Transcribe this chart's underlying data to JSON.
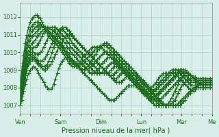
{
  "bg_color": "#d8eee8",
  "grid_color": "#b0d0c8",
  "line_color": "#1a6b1a",
  "marker": "+",
  "marker_size": 4,
  "linewidth": 1.0,
  "ylim": [
    1006.5,
    1012.8
  ],
  "yticks": [
    1007,
    1008,
    1009,
    1010,
    1011,
    1012
  ],
  "xlabel": "Pression niveau de la mer( hPa )",
  "day_labels": [
    "Ven",
    "Sam",
    "Dim",
    "Lun",
    "Mar",
    "Me"
  ],
  "day_positions": [
    0,
    24,
    48,
    72,
    96,
    114
  ],
  "n_points": 115,
  "series": [
    [
      1007.0,
      1007.3,
      1007.8,
      1008.2,
      1008.5,
      1008.8,
      1009.0,
      1009.1,
      1009.2,
      1009.1,
      1009.0,
      1008.8,
      1008.6,
      1008.5,
      1008.3,
      1008.1,
      1008.0,
      1007.9,
      1007.9,
      1008.0,
      1008.2,
      1008.5,
      1008.8,
      1009.1,
      1009.3,
      1009.5,
      1009.6,
      1009.7,
      1009.7,
      1009.7,
      1009.6,
      1009.5,
      1009.4,
      1009.3,
      1009.2,
      1009.1,
      1009.0,
      1008.9,
      1008.8,
      1008.7,
      1008.6,
      1008.5,
      1008.4,
      1008.3,
      1008.2,
      1008.1,
      1008.0,
      1007.9,
      1007.8,
      1007.7,
      1007.6,
      1007.5,
      1007.4,
      1007.3,
      1007.3,
      1007.3,
      1007.3,
      1007.4,
      1007.5,
      1007.6,
      1007.7,
      1007.8,
      1007.9,
      1008.0,
      1008.1,
      1008.1,
      1008.1,
      1008.1,
      1008.1,
      1008.1,
      1008.0,
      1007.9,
      1007.8,
      1007.7,
      1007.6,
      1007.5,
      1007.4,
      1007.3,
      1007.2,
      1007.1,
      1007.0,
      1007.0,
      1007.0,
      1007.0,
      1007.0,
      1007.0,
      1007.0,
      1007.0,
      1007.0,
      1007.0,
      1007.0,
      1007.0,
      1007.0,
      1007.0,
      1007.0,
      1007.0,
      1007.1,
      1007.2,
      1007.3,
      1007.5,
      1007.6,
      1007.7,
      1007.8,
      1007.9,
      1008.0,
      1008.1,
      1008.2,
      1008.2,
      1008.2,
      1008.2,
      1008.2,
      1008.2,
      1008.2,
      1008.2,
      1008.2
    ],
    [
      1007.0,
      1007.5,
      1008.0,
      1008.5,
      1009.0,
      1009.3,
      1009.5,
      1009.6,
      1009.6,
      1009.5,
      1009.4,
      1009.3,
      1009.2,
      1009.1,
      1009.0,
      1009.0,
      1009.1,
      1009.2,
      1009.3,
      1009.5,
      1009.7,
      1009.9,
      1010.1,
      1010.3,
      1010.5,
      1010.6,
      1010.8,
      1010.9,
      1011.0,
      1011.0,
      1011.0,
      1010.9,
      1010.8,
      1010.7,
      1010.6,
      1010.5,
      1010.4,
      1010.3,
      1010.2,
      1010.1,
      1010.0,
      1009.9,
      1009.8,
      1009.7,
      1009.6,
      1009.5,
      1009.4,
      1009.3,
      1009.2,
      1009.1,
      1009.0,
      1008.9,
      1008.8,
      1008.7,
      1008.6,
      1008.5,
      1008.4,
      1008.3,
      1008.3,
      1008.3,
      1008.3,
      1008.4,
      1008.5,
      1008.6,
      1008.7,
      1008.7,
      1008.7,
      1008.7,
      1008.7,
      1008.7,
      1008.6,
      1008.5,
      1008.4,
      1008.3,
      1008.2,
      1008.1,
      1008.0,
      1007.9,
      1007.8,
      1007.7,
      1007.6,
      1007.5,
      1007.4,
      1007.3,
      1007.2,
      1007.1,
      1007.0,
      1007.0,
      1007.0,
      1007.0,
      1007.0,
      1007.0,
      1007.0,
      1007.0,
      1007.1,
      1007.2,
      1007.3,
      1007.4,
      1007.5,
      1007.6,
      1007.7,
      1007.8,
      1007.9,
      1008.0,
      1008.0,
      1008.0,
      1008.0,
      1008.0,
      1008.0,
      1008.0,
      1008.0,
      1008.0,
      1008.0,
      1008.0,
      1008.0
    ],
    [
      1007.0,
      1007.6,
      1008.2,
      1008.7,
      1009.1,
      1009.4,
      1009.6,
      1009.7,
      1009.7,
      1009.6,
      1009.5,
      1009.4,
      1009.3,
      1009.2,
      1009.2,
      1009.2,
      1009.3,
      1009.5,
      1009.7,
      1010.0,
      1010.3,
      1010.6,
      1010.8,
      1011.0,
      1011.2,
      1011.3,
      1011.4,
      1011.4,
      1011.3,
      1011.2,
      1011.1,
      1011.0,
      1010.8,
      1010.7,
      1010.6,
      1010.5,
      1010.4,
      1010.3,
      1010.2,
      1010.1,
      1010.0,
      1009.9,
      1009.8,
      1009.7,
      1009.6,
      1009.5,
      1009.4,
      1009.3,
      1009.2,
      1009.1,
      1009.0,
      1008.9,
      1008.8,
      1008.7,
      1008.6,
      1008.5,
      1008.5,
      1008.5,
      1008.6,
      1008.7,
      1008.8,
      1008.9,
      1009.0,
      1009.0,
      1009.0,
      1009.0,
      1008.9,
      1008.8,
      1008.7,
      1008.6,
      1008.5,
      1008.4,
      1008.3,
      1008.2,
      1008.1,
      1008.0,
      1007.9,
      1007.8,
      1007.7,
      1007.6,
      1007.5,
      1007.4,
      1007.3,
      1007.2,
      1007.1,
      1007.0,
      1007.0,
      1007.0,
      1007.0,
      1007.0,
      1007.1,
      1007.2,
      1007.3,
      1007.5,
      1007.7,
      1007.9,
      1008.1,
      1008.2,
      1008.3,
      1008.4,
      1008.5,
      1008.5,
      1008.5,
      1008.5,
      1008.5,
      1008.5,
      1008.5,
      1008.5,
      1008.5,
      1008.5,
      1008.5,
      1008.5,
      1008.5,
      1008.5,
      1008.5
    ],
    [
      1007.0,
      1007.7,
      1008.3,
      1008.8,
      1009.2,
      1009.5,
      1009.7,
      1009.8,
      1009.8,
      1009.7,
      1009.6,
      1009.5,
      1009.5,
      1009.5,
      1009.6,
      1009.7,
      1009.9,
      1010.1,
      1010.3,
      1010.5,
      1010.7,
      1010.9,
      1011.1,
      1011.2,
      1011.3,
      1011.4,
      1011.4,
      1011.4,
      1011.3,
      1011.2,
      1011.1,
      1010.9,
      1010.8,
      1010.7,
      1010.6,
      1010.5,
      1010.4,
      1010.3,
      1010.2,
      1010.1,
      1010.0,
      1009.9,
      1009.8,
      1009.7,
      1009.6,
      1009.5,
      1009.4,
      1009.3,
      1009.2,
      1009.1,
      1009.0,
      1008.9,
      1008.8,
      1008.7,
      1008.7,
      1008.7,
      1008.8,
      1008.9,
      1009.0,
      1009.1,
      1009.1,
      1009.1,
      1009.1,
      1009.0,
      1008.9,
      1008.8,
      1008.7,
      1008.6,
      1008.5,
      1008.4,
      1008.3,
      1008.2,
      1008.1,
      1008.0,
      1007.9,
      1007.8,
      1007.7,
      1007.6,
      1007.5,
      1007.4,
      1007.3,
      1007.2,
      1007.1,
      1007.0,
      1007.0,
      1007.0,
      1007.0,
      1007.0,
      1007.1,
      1007.2,
      1007.4,
      1007.6,
      1007.8,
      1008.0,
      1008.2,
      1008.4,
      1008.5,
      1008.6,
      1008.7,
      1008.7,
      1008.7,
      1008.7,
      1008.6,
      1008.6,
      1008.6,
      1008.5,
      1008.5,
      1008.5,
      1008.5,
      1008.5,
      1008.5,
      1008.5,
      1008.5,
      1008.5,
      1008.5
    ],
    [
      1007.0,
      1007.8,
      1008.5,
      1009.0,
      1009.4,
      1009.7,
      1009.9,
      1010.0,
      1010.0,
      1009.9,
      1009.9,
      1009.9,
      1010.0,
      1010.1,
      1010.3,
      1010.5,
      1010.7,
      1010.9,
      1011.0,
      1011.1,
      1011.2,
      1011.3,
      1011.3,
      1011.3,
      1011.3,
      1011.3,
      1011.2,
      1011.1,
      1011.0,
      1010.8,
      1010.7,
      1010.5,
      1010.4,
      1010.3,
      1010.2,
      1010.1,
      1010.0,
      1009.9,
      1009.8,
      1009.7,
      1009.6,
      1009.5,
      1009.4,
      1009.3,
      1009.2,
      1009.1,
      1009.0,
      1008.9,
      1008.8,
      1008.8,
      1008.8,
      1008.8,
      1008.8,
      1008.9,
      1009.0,
      1009.1,
      1009.2,
      1009.2,
      1009.2,
      1009.2,
      1009.1,
      1009.0,
      1008.9,
      1008.8,
      1008.7,
      1008.6,
      1008.5,
      1008.4,
      1008.3,
      1008.2,
      1008.1,
      1008.0,
      1007.9,
      1007.8,
      1007.7,
      1007.6,
      1007.5,
      1007.4,
      1007.3,
      1007.3,
      1007.3,
      1007.3,
      1007.3,
      1007.3,
      1007.4,
      1007.5,
      1007.6,
      1007.7,
      1007.8,
      1007.9,
      1008.0,
      1008.1,
      1008.2,
      1008.3,
      1008.4,
      1008.5,
      1008.6,
      1008.7,
      1008.8,
      1008.8,
      1008.8,
      1008.7,
      1008.7,
      1008.6,
      1008.5,
      1008.4,
      1008.3,
      1008.2,
      1008.2,
      1008.2,
      1008.2,
      1008.2,
      1008.2,
      1008.2,
      1008.2
    ],
    [
      1007.1,
      1007.9,
      1008.6,
      1009.2,
      1009.6,
      1009.9,
      1010.1,
      1010.2,
      1010.3,
      1010.3,
      1010.4,
      1010.5,
      1010.7,
      1010.9,
      1011.1,
      1011.2,
      1011.3,
      1011.4,
      1011.4,
      1011.4,
      1011.4,
      1011.4,
      1011.3,
      1011.2,
      1011.1,
      1011.0,
      1010.9,
      1010.8,
      1010.6,
      1010.5,
      1010.3,
      1010.2,
      1010.1,
      1010.0,
      1009.9,
      1009.8,
      1009.7,
      1009.6,
      1009.5,
      1009.4,
      1009.3,
      1009.2,
      1009.1,
      1009.0,
      1008.9,
      1008.8,
      1008.8,
      1008.8,
      1008.8,
      1008.9,
      1009.0,
      1009.1,
      1009.2,
      1009.3,
      1009.4,
      1009.4,
      1009.4,
      1009.3,
      1009.2,
      1009.1,
      1009.0,
      1008.9,
      1008.8,
      1008.7,
      1008.6,
      1008.5,
      1008.4,
      1008.3,
      1008.2,
      1008.1,
      1008.0,
      1007.9,
      1007.8,
      1007.7,
      1007.6,
      1007.5,
      1007.4,
      1007.3,
      1007.3,
      1007.3,
      1007.4,
      1007.5,
      1007.6,
      1007.7,
      1007.8,
      1007.9,
      1008.0,
      1008.1,
      1008.2,
      1008.3,
      1008.4,
      1008.5,
      1008.6,
      1008.7,
      1008.8,
      1008.9,
      1008.9,
      1008.9,
      1008.9,
      1008.8,
      1008.8,
      1008.7,
      1008.6,
      1008.5,
      1008.4,
      1008.3,
      1008.2,
      1008.2,
      1008.2,
      1008.2,
      1008.2,
      1008.2,
      1008.2,
      1008.2,
      1008.2
    ],
    [
      1007.2,
      1008.1,
      1008.8,
      1009.4,
      1009.8,
      1010.1,
      1010.3,
      1010.5,
      1010.6,
      1010.7,
      1010.9,
      1011.0,
      1011.1,
      1011.2,
      1011.3,
      1011.4,
      1011.4,
      1011.4,
      1011.3,
      1011.3,
      1011.2,
      1011.1,
      1011.0,
      1010.9,
      1010.8,
      1010.7,
      1010.6,
      1010.5,
      1010.3,
      1010.2,
      1010.0,
      1009.9,
      1009.8,
      1009.7,
      1009.6,
      1009.5,
      1009.4,
      1009.3,
      1009.2,
      1009.1,
      1009.0,
      1008.9,
      1008.8,
      1008.8,
      1008.8,
      1008.9,
      1009.0,
      1009.1,
      1009.3,
      1009.4,
      1009.5,
      1009.6,
      1009.7,
      1009.7,
      1009.7,
      1009.7,
      1009.6,
      1009.5,
      1009.4,
      1009.3,
      1009.2,
      1009.1,
      1009.0,
      1008.9,
      1008.8,
      1008.7,
      1008.6,
      1008.5,
      1008.4,
      1008.3,
      1008.2,
      1008.1,
      1008.0,
      1007.9,
      1007.8,
      1007.7,
      1007.6,
      1007.5,
      1007.4,
      1007.4,
      1007.4,
      1007.5,
      1007.6,
      1007.7,
      1007.8,
      1007.9,
      1008.0,
      1008.1,
      1008.2,
      1008.3,
      1008.4,
      1008.5,
      1008.6,
      1008.7,
      1008.8,
      1008.9,
      1009.0,
      1009.0,
      1009.0,
      1008.9,
      1008.8,
      1008.7,
      1008.6,
      1008.5,
      1008.4,
      1008.3,
      1008.3,
      1008.3,
      1008.3,
      1008.3,
      1008.3,
      1008.3,
      1008.3,
      1008.3,
      1008.3
    ],
    [
      1007.3,
      1008.2,
      1009.0,
      1009.6,
      1010.1,
      1010.4,
      1010.7,
      1010.9,
      1011.0,
      1011.1,
      1011.2,
      1011.3,
      1011.4,
      1011.4,
      1011.4,
      1011.4,
      1011.3,
      1011.2,
      1011.1,
      1011.0,
      1010.9,
      1010.8,
      1010.7,
      1010.6,
      1010.5,
      1010.4,
      1010.3,
      1010.2,
      1010.0,
      1009.9,
      1009.7,
      1009.6,
      1009.5,
      1009.4,
      1009.3,
      1009.2,
      1009.1,
      1009.0,
      1009.0,
      1009.0,
      1009.0,
      1009.1,
      1009.2,
      1009.3,
      1009.4,
      1009.5,
      1009.6,
      1009.7,
      1009.8,
      1009.9,
      1010.0,
      1010.0,
      1010.0,
      1010.0,
      1009.9,
      1009.8,
      1009.7,
      1009.6,
      1009.5,
      1009.4,
      1009.3,
      1009.2,
      1009.1,
      1009.0,
      1008.9,
      1008.8,
      1008.7,
      1008.6,
      1008.5,
      1008.4,
      1008.3,
      1008.2,
      1008.1,
      1008.0,
      1007.9,
      1007.8,
      1007.7,
      1007.6,
      1007.5,
      1007.5,
      1007.5,
      1007.6,
      1007.7,
      1007.8,
      1007.9,
      1008.0,
      1008.1,
      1008.2,
      1008.3,
      1008.4,
      1008.5,
      1008.6,
      1008.7,
      1008.8,
      1008.9,
      1009.0,
      1009.0,
      1009.0,
      1009.0,
      1008.9,
      1008.8,
      1008.7,
      1008.6,
      1008.5,
      1008.4,
      1008.4,
      1008.4,
      1008.4,
      1008.4,
      1008.4,
      1008.4,
      1008.4,
      1008.4,
      1008.4,
      1008.4
    ],
    [
      1007.5,
      1008.4,
      1009.2,
      1009.8,
      1010.3,
      1010.7,
      1011.0,
      1011.2,
      1011.3,
      1011.4,
      1011.5,
      1011.5,
      1011.5,
      1011.5,
      1011.4,
      1011.3,
      1011.2,
      1011.1,
      1011.0,
      1010.9,
      1010.8,
      1010.7,
      1010.6,
      1010.5,
      1010.4,
      1010.3,
      1010.2,
      1010.0,
      1009.9,
      1009.7,
      1009.6,
      1009.5,
      1009.4,
      1009.3,
      1009.2,
      1009.1,
      1009.0,
      1009.0,
      1009.0,
      1009.1,
      1009.2,
      1009.3,
      1009.5,
      1009.6,
      1009.8,
      1009.9,
      1010.1,
      1010.2,
      1010.3,
      1010.4,
      1010.5,
      1010.5,
      1010.5,
      1010.4,
      1010.3,
      1010.2,
      1010.1,
      1010.0,
      1009.9,
      1009.8,
      1009.7,
      1009.6,
      1009.5,
      1009.4,
      1009.3,
      1009.2,
      1009.1,
      1009.0,
      1008.9,
      1008.8,
      1008.7,
      1008.6,
      1008.5,
      1008.4,
      1008.3,
      1008.2,
      1008.1,
      1008.0,
      1007.9,
      1007.8,
      1007.8,
      1007.9,
      1008.0,
      1008.1,
      1008.2,
      1008.3,
      1008.4,
      1008.5,
      1008.6,
      1008.7,
      1008.8,
      1008.9,
      1009.0,
      1009.0,
      1009.0,
      1009.0,
      1008.9,
      1008.8,
      1008.7,
      1008.6,
      1008.5,
      1008.4,
      1008.3,
      1008.3,
      1008.3,
      1008.3,
      1008.3,
      1008.3,
      1008.3,
      1008.3,
      1008.3,
      1008.3,
      1008.3,
      1008.3,
      1008.3
    ],
    [
      1007.7,
      1008.6,
      1009.4,
      1010.1,
      1010.6,
      1011.0,
      1011.3,
      1011.5,
      1011.6,
      1011.7,
      1011.7,
      1011.7,
      1011.6,
      1011.5,
      1011.4,
      1011.3,
      1011.2,
      1011.1,
      1011.0,
      1010.9,
      1010.8,
      1010.7,
      1010.6,
      1010.5,
      1010.4,
      1010.2,
      1010.1,
      1009.9,
      1009.8,
      1009.6,
      1009.5,
      1009.4,
      1009.3,
      1009.2,
      1009.2,
      1009.2,
      1009.3,
      1009.4,
      1009.5,
      1009.6,
      1009.7,
      1009.8,
      1009.9,
      1010.0,
      1010.1,
      1010.2,
      1010.3,
      1010.3,
      1010.4,
      1010.4,
      1010.4,
      1010.4,
      1010.3,
      1010.2,
      1010.1,
      1010.0,
      1009.9,
      1009.8,
      1009.7,
      1009.6,
      1009.5,
      1009.4,
      1009.3,
      1009.2,
      1009.1,
      1009.0,
      1008.9,
      1008.8,
      1008.7,
      1008.6,
      1008.5,
      1008.4,
      1008.3,
      1008.2,
      1008.1,
      1008.0,
      1007.9,
      1007.8,
      1007.7,
      1007.8,
      1007.9,
      1008.0,
      1008.2,
      1008.3,
      1008.4,
      1008.5,
      1008.6,
      1008.7,
      1008.8,
      1008.9,
      1009.0,
      1009.0,
      1009.0,
      1009.0,
      1008.9,
      1008.8,
      1008.7,
      1008.6,
      1008.5,
      1008.4,
      1008.3,
      1008.2,
      1008.1,
      1008.1,
      1008.1,
      1008.1,
      1008.1,
      1008.1,
      1008.1,
      1008.1,
      1008.1,
      1008.1,
      1008.1,
      1008.1,
      1008.1
    ],
    [
      1008.0,
      1009.0,
      1009.8,
      1010.5,
      1011.0,
      1011.4,
      1011.7,
      1011.9,
      1012.0,
      1012.1,
      1012.1,
      1012.0,
      1011.9,
      1011.7,
      1011.5,
      1011.3,
      1011.1,
      1011.0,
      1010.8,
      1010.7,
      1010.6,
      1010.5,
      1010.4,
      1010.3,
      1010.2,
      1010.0,
      1009.9,
      1009.7,
      1009.6,
      1009.4,
      1009.3,
      1009.2,
      1009.2,
      1009.2,
      1009.3,
      1009.4,
      1009.5,
      1009.7,
      1009.8,
      1009.9,
      1010.0,
      1010.1,
      1010.2,
      1010.3,
      1010.3,
      1010.3,
      1010.3,
      1010.3,
      1010.3,
      1010.2,
      1010.1,
      1010.0,
      1009.9,
      1009.8,
      1009.7,
      1009.6,
      1009.5,
      1009.4,
      1009.3,
      1009.2,
      1009.1,
      1009.0,
      1008.9,
      1008.8,
      1008.7,
      1008.6,
      1008.5,
      1008.4,
      1008.3,
      1008.2,
      1008.1,
      1008.0,
      1007.9,
      1007.8,
      1007.7,
      1007.7,
      1007.8,
      1007.9,
      1008.0,
      1008.1,
      1008.2,
      1008.3,
      1008.5,
      1008.6,
      1008.7,
      1008.8,
      1008.8,
      1008.8,
      1008.8,
      1008.8,
      1008.8,
      1008.8,
      1008.8,
      1008.7,
      1008.6,
      1008.5,
      1008.4,
      1008.3,
      1008.2,
      1008.1,
      1008.0,
      1007.9,
      1007.8,
      1007.8,
      1007.9,
      1008.0,
      1008.1,
      1008.2,
      1008.3,
      1008.3,
      1008.3,
      1008.3,
      1008.3,
      1008.3,
      1008.3,
      1008.3,
      1008.3
    ]
  ]
}
